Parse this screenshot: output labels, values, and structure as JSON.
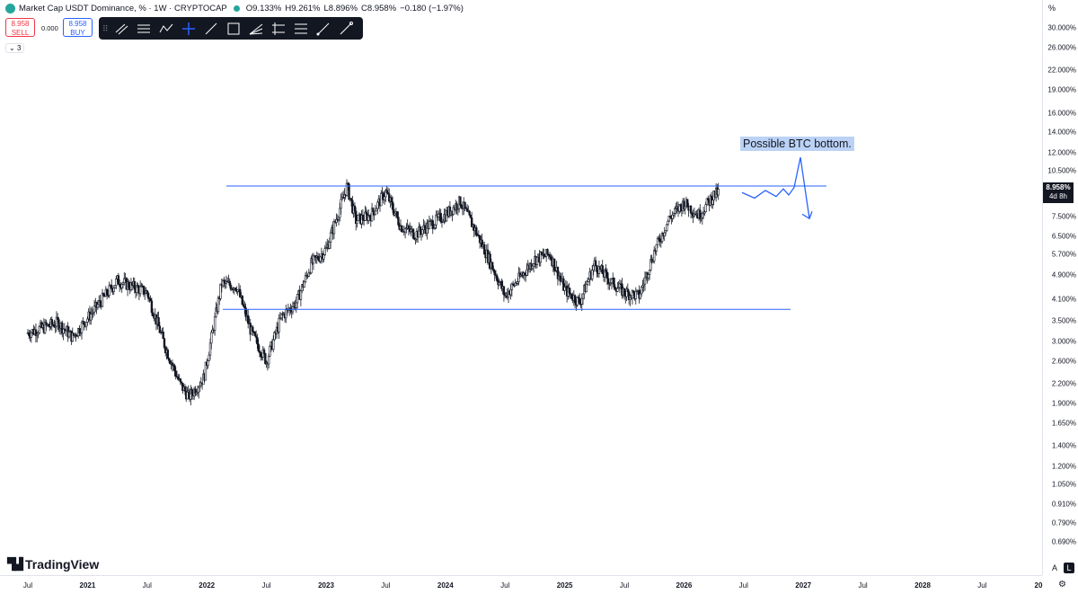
{
  "header": {
    "title": "Market Cap USDT Dominance, % · 1W · CRYPTOCAP",
    "open_label": "O",
    "open": "9.133%",
    "high_label": "H",
    "high": "9.261%",
    "low_label": "L",
    "low": "8.896%",
    "close_label": "C",
    "close": "8.958%",
    "change": "−0.180 (−1.97%)"
  },
  "trade": {
    "sell_price": "8.958",
    "sell_label": "SELL",
    "spread": "0.000",
    "buy_price": "8.958",
    "buy_label": "BUY"
  },
  "indicators_toggle": "3",
  "toolbar": {
    "tools": [
      "parallel-channel-icon",
      "fib-retracement-icon",
      "path-icon",
      "crosshair-icon",
      "trend-line-icon",
      "rectangle-icon",
      "fan-icon",
      "gann-box-icon",
      "regression-icon",
      "long-position-icon",
      "ray-icon"
    ],
    "accent": "#2962ff"
  },
  "price_axis": {
    "unit": "%",
    "last_price": "8.958%",
    "countdown": "4d 8h"
  },
  "annotation": "Possible BTC bottom.",
  "branding": "TradingView",
  "footer": {
    "auto": "A",
    "log": "L"
  },
  "chart_data": {
    "type": "candlestick",
    "symbol": "USDT.D",
    "interval": "1W",
    "scale": "log",
    "y_ticks": [
      "30.000%",
      "26.000%",
      "22.000%",
      "19.000%",
      "16.000%",
      "14.000%",
      "12.000%",
      "10.500%",
      "8.958%",
      "7.500%",
      "6.500%",
      "5.700%",
      "4.900%",
      "4.100%",
      "3.500%",
      "3.000%",
      "2.600%",
      "2.200%",
      "1.900%",
      "1.650%",
      "1.400%",
      "1.200%",
      "1.050%",
      "0.910%",
      "0.790%",
      "0.690%"
    ],
    "x_ticks": [
      "Jul",
      "2021",
      "Jul",
      "2022",
      "Jul",
      "2023",
      "Jul",
      "2024",
      "Jul",
      "2025",
      "Jul",
      "2026",
      "Jul",
      "2027",
      "Jul",
      "2028",
      "Jul",
      "20"
    ],
    "series": [
      {
        "t": 0.0,
        "v": 3.2
      },
      {
        "t": 0.5,
        "v": 3.45
      },
      {
        "t": 0.75,
        "v": 3.1
      },
      {
        "t": 1.5,
        "v": 4.7
      },
      {
        "t": 2.0,
        "v": 4.3
      },
      {
        "t": 2.3,
        "v": 2.9
      },
      {
        "t": 2.55,
        "v": 2.2
      },
      {
        "t": 2.7,
        "v": 2.0
      },
      {
        "t": 2.95,
        "v": 2.3
      },
      {
        "t": 3.25,
        "v": 4.6
      },
      {
        "t": 3.5,
        "v": 4.5
      },
      {
        "t": 3.75,
        "v": 3.2
      },
      {
        "t": 4.0,
        "v": 2.6
      },
      {
        "t": 4.25,
        "v": 3.6
      },
      {
        "t": 4.5,
        "v": 4.0
      },
      {
        "t": 4.75,
        "v": 5.3
      },
      {
        "t": 5.0,
        "v": 5.9
      },
      {
        "t": 5.25,
        "v": 8.2
      },
      {
        "t": 5.35,
        "v": 9.4
      },
      {
        "t": 5.5,
        "v": 7.3
      },
      {
        "t": 5.75,
        "v": 7.6
      },
      {
        "t": 6.0,
        "v": 9.0
      },
      {
        "t": 6.25,
        "v": 7.0
      },
      {
        "t": 6.5,
        "v": 6.6
      },
      {
        "t": 6.75,
        "v": 7.1
      },
      {
        "t": 7.0,
        "v": 7.6
      },
      {
        "t": 7.25,
        "v": 8.4
      },
      {
        "t": 7.5,
        "v": 6.8
      },
      {
        "t": 7.75,
        "v": 5.4
      },
      {
        "t": 8.0,
        "v": 4.2
      },
      {
        "t": 8.25,
        "v": 4.8
      },
      {
        "t": 8.5,
        "v": 5.5
      },
      {
        "t": 8.75,
        "v": 5.7
      },
      {
        "t": 9.0,
        "v": 4.4
      },
      {
        "t": 9.25,
        "v": 4.0
      },
      {
        "t": 9.5,
        "v": 5.3
      },
      {
        "t": 9.75,
        "v": 4.7
      },
      {
        "t": 10.0,
        "v": 4.3
      },
      {
        "t": 10.25,
        "v": 4.2
      },
      {
        "t": 10.5,
        "v": 5.8
      },
      {
        "t": 10.75,
        "v": 7.4
      },
      {
        "t": 11.0,
        "v": 8.3
      },
      {
        "t": 11.25,
        "v": 7.6
      },
      {
        "t": 11.5,
        "v": 8.8
      },
      {
        "t": 11.58,
        "v": 8.958
      }
    ],
    "resistance": 9.4,
    "support": 3.8,
    "projection": [
      8.958,
      8.6,
      9.1,
      8.7,
      9.2,
      8.8,
      9.3,
      11.6,
      7.4
    ]
  }
}
